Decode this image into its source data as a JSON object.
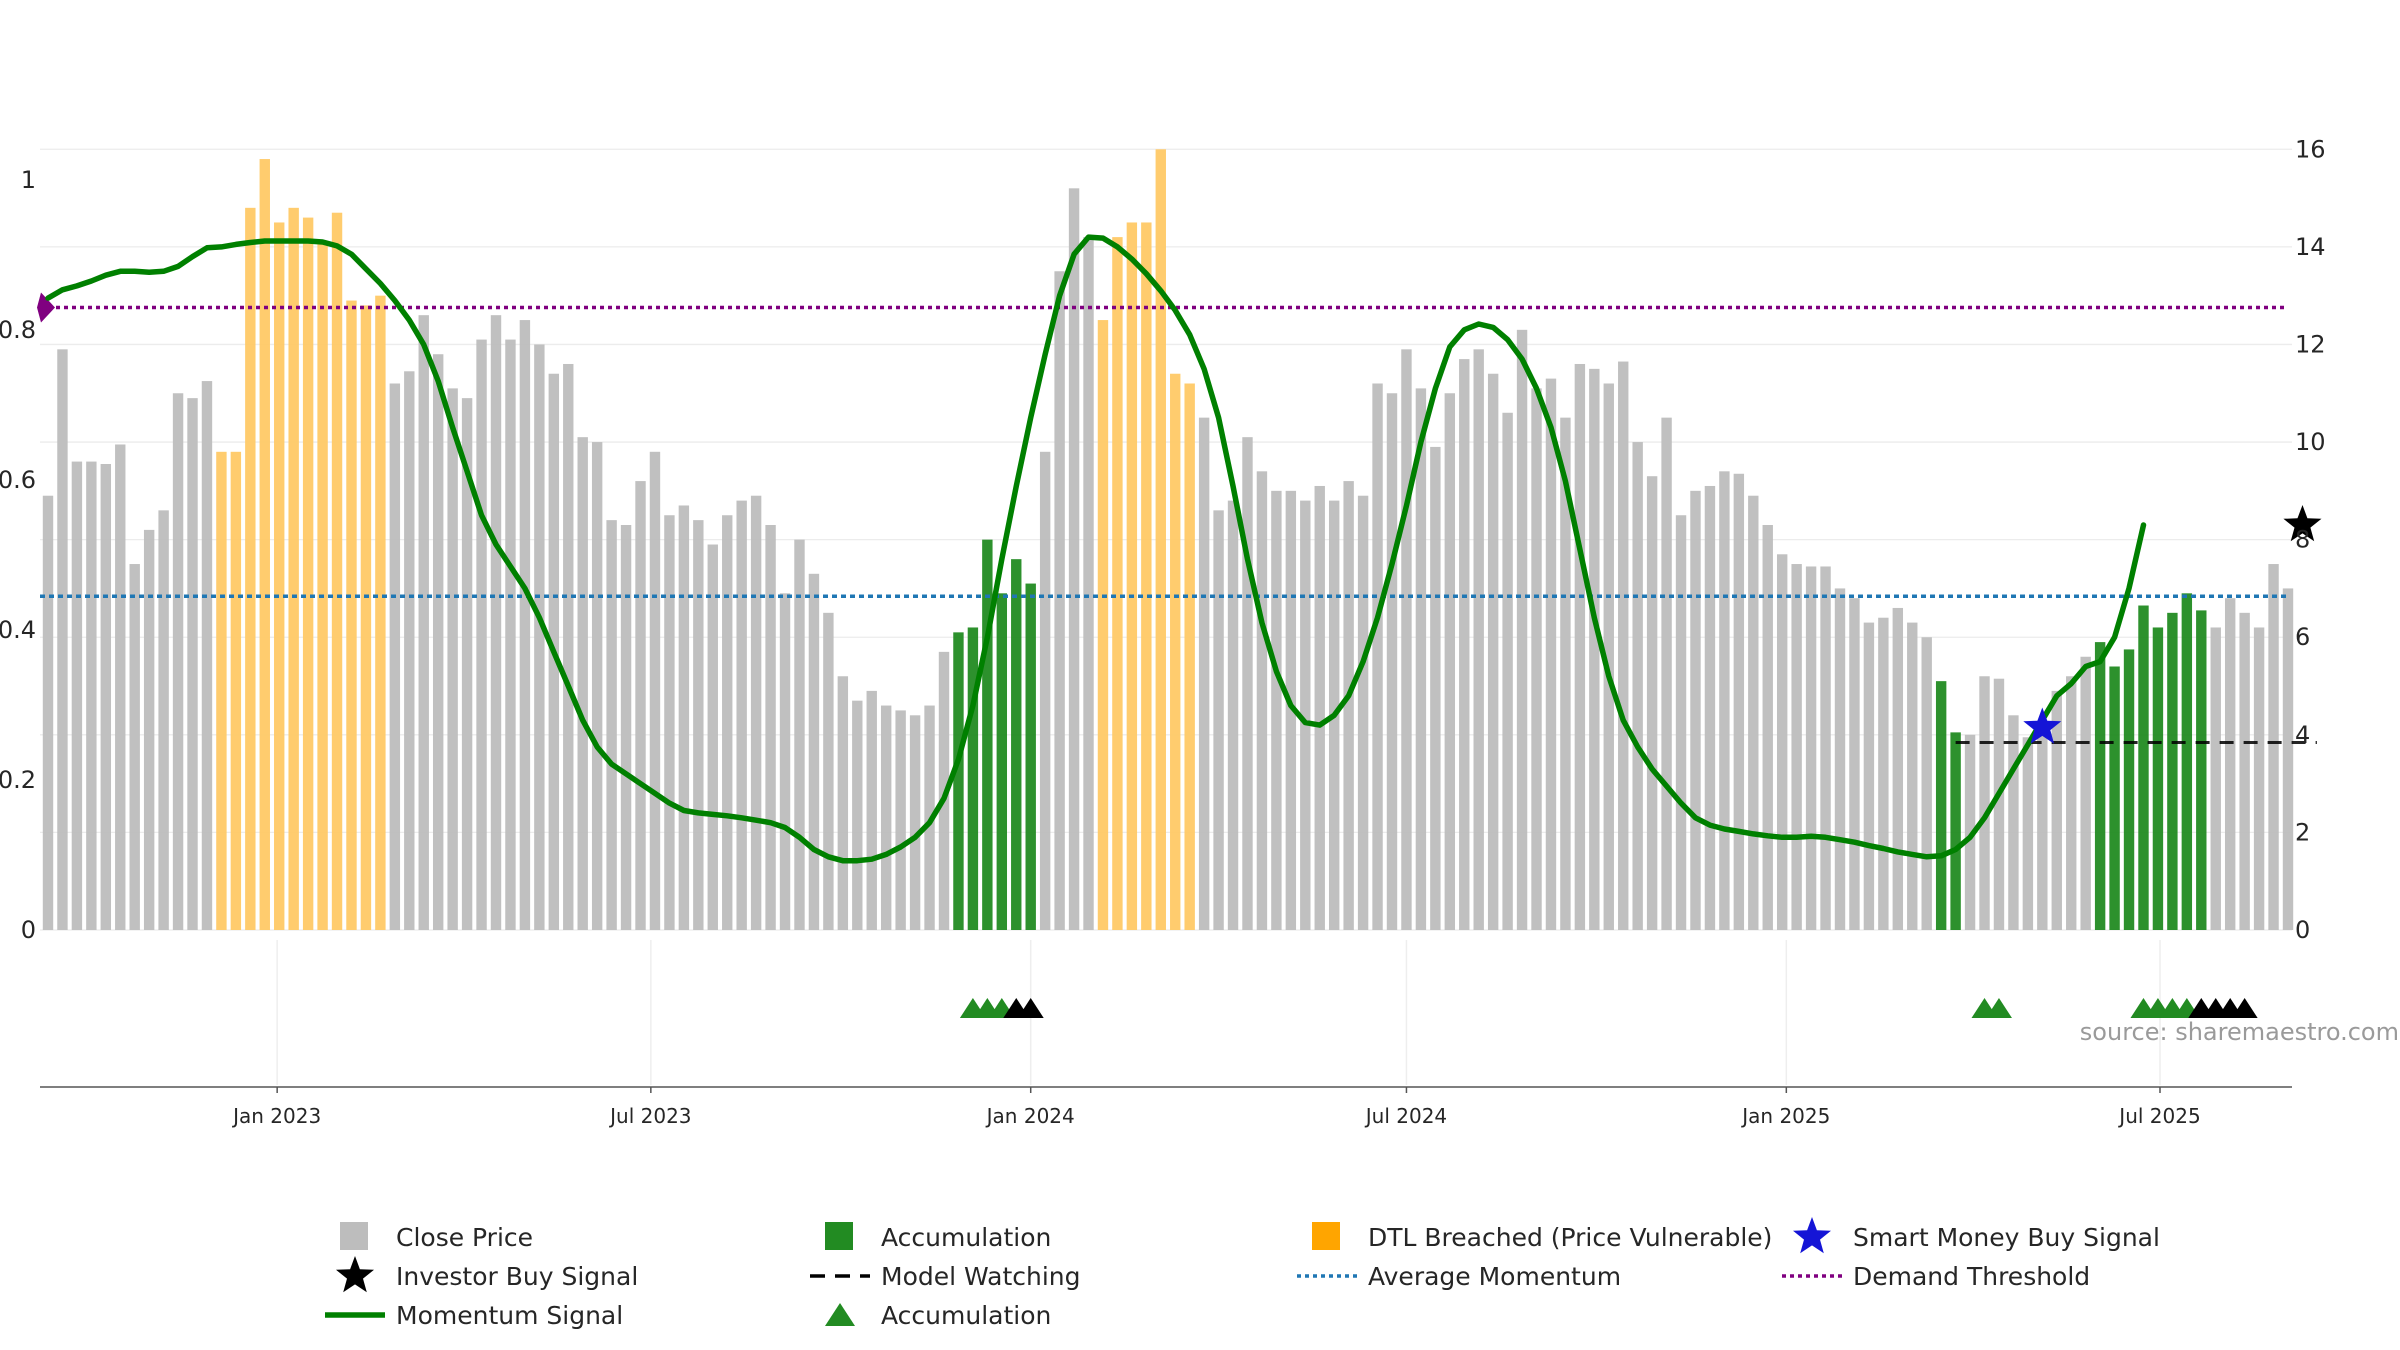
{
  "chart_data": {
    "type": "bar",
    "title": "",
    "xlabel": "",
    "ylabel": "",
    "source_text": "source: sharemaestro.com",
    "x_start": "2022-09-12",
    "x_step_days": 7,
    "x_ticks": [
      "Jan 2023",
      "Jul 2023",
      "Jan 2024",
      "Jul 2024",
      "Jan 2025",
      "Jul 2025"
    ],
    "left_axis": {
      "range": [
        0,
        1.08
      ],
      "ticks": [
        "0",
        "0.2",
        "0.4",
        "0.6",
        "0.8",
        "1"
      ]
    },
    "right_axis": {
      "range": [
        0,
        16.6
      ],
      "ticks": [
        "0",
        "2",
        "4",
        "6",
        "8",
        "10",
        "12",
        "14",
        "16"
      ]
    },
    "demand_threshold": 0.83,
    "average_momentum": 0.445,
    "model_watching_level": 0.25,
    "legend_items": [
      "Close Price",
      "Accumulation",
      "DTL Breached (Price Vulnerable)",
      "Smart Money Buy Signal",
      "Investor Buy Signal",
      "Model Watching",
      "Average Momentum",
      "Demand Threshold",
      "Momentum Signal",
      "Accumulation"
    ],
    "colors": {
      "close_price": "#bdbdbd",
      "accumulation": "#228b22",
      "dtl_breached": "#ffc966",
      "momentum_signal": "#008000",
      "average_momentum": "#1f77b4",
      "demand_threshold": "#800080",
      "smart_money": "#1515d6",
      "investor_buy": "#000000",
      "model_watching": "#000000"
    },
    "close_price": [
      8.9,
      11.9,
      9.6,
      9.6,
      9.55,
      9.95,
      7.5,
      8.2,
      8.6,
      11,
      10.9,
      11.25,
      9.8,
      9.8,
      14.8,
      15.8,
      14.5,
      14.8,
      14.6,
      14.1,
      14.7,
      12.9,
      12.8,
      13,
      11.2,
      11.45,
      12.6,
      11.8,
      11.1,
      10.9,
      12.1,
      12.6,
      12.1,
      12.5,
      12,
      11.4,
      11.6,
      10.1,
      10,
      8.4,
      8.3,
      9.2,
      9.8,
      8.5,
      8.7,
      8.4,
      7.9,
      8.5,
      8.8,
      8.9,
      8.3,
      6.9,
      8,
      7.3,
      6.5,
      5.2,
      4.7,
      4.9,
      4.6,
      4.5,
      4.4,
      4.6,
      5.7,
      6.1,
      6.2,
      8,
      6.9,
      7.6,
      7.1,
      9.8,
      13.5,
      15.2,
      14.2,
      12.5,
      14.2,
      14.5,
      14.5,
      16,
      11.4,
      11.2,
      10.5,
      8.6,
      8.8,
      10.1,
      9.4,
      9,
      9,
      8.8,
      9.1,
      8.8,
      9.2,
      8.9,
      11.2,
      11,
      11.9,
      11.1,
      9.9,
      11,
      11.7,
      11.9,
      11.4,
      10.6,
      12.3,
      11.1,
      11.3,
      10.5,
      11.6,
      11.5,
      11.2,
      11.65,
      10,
      9.3,
      10.5,
      8.5,
      9,
      9.1,
      9.4,
      9.35,
      8.9,
      8.3,
      7.7,
      7.5,
      7.45,
      7.45,
      7,
      6.8,
      6.3,
      6.4,
      6.6,
      6.3,
      6,
      5.1,
      4.05,
      4,
      5.2,
      5.15,
      4.4,
      3.95,
      4.05,
      4.9,
      5.2,
      5.6,
      5.9,
      5.4,
      5.75,
      6.65,
      6.2,
      6.5,
      6.9,
      6.55,
      6.2,
      6.8,
      6.5,
      6.2,
      7.5,
      7
    ],
    "categories_by_bar": {
      "dtl_breached": [
        [
          12,
          23
        ],
        [
          73,
          79
        ]
      ],
      "accumulation": [
        [
          63,
          68
        ],
        [
          131,
          132
        ],
        [
          142,
          149
        ]
      ]
    },
    "momentum_signal": [
      [
        0,
        12.95
      ],
      [
        1,
        13.12
      ],
      [
        2,
        13.2
      ],
      [
        3,
        13.3
      ],
      [
        4,
        13.42
      ],
      [
        5,
        13.5
      ],
      [
        6,
        13.5
      ],
      [
        7,
        13.48
      ],
      [
        8,
        13.5
      ],
      [
        9,
        13.6
      ],
      [
        10,
        13.8
      ],
      [
        11,
        13.98
      ],
      [
        12,
        14.0
      ],
      [
        13,
        14.05
      ],
      [
        14,
        14.09
      ],
      [
        15,
        14.12
      ],
      [
        16,
        14.12
      ],
      [
        17,
        14.12
      ],
      [
        18,
        14.12
      ],
      [
        19,
        14.1
      ],
      [
        20,
        14.02
      ],
      [
        21,
        13.85
      ],
      [
        22,
        13.55
      ],
      [
        23,
        13.25
      ],
      [
        24,
        12.9
      ],
      [
        25,
        12.5
      ],
      [
        26,
        12.0
      ],
      [
        27,
        11.25
      ],
      [
        28,
        10.3
      ],
      [
        29,
        9.4
      ],
      [
        30,
        8.5
      ],
      [
        31,
        7.9
      ],
      [
        32,
        7.45
      ],
      [
        33,
        7.0
      ],
      [
        34,
        6.4
      ],
      [
        35,
        5.7
      ],
      [
        36,
        5.0
      ],
      [
        37,
        4.3
      ],
      [
        38,
        3.75
      ],
      [
        39,
        3.4
      ],
      [
        40,
        3.2
      ],
      [
        41,
        3.0
      ],
      [
        42,
        2.8
      ],
      [
        43,
        2.6
      ],
      [
        44,
        2.45
      ],
      [
        45,
        2.4
      ],
      [
        46,
        2.37
      ],
      [
        47,
        2.34
      ],
      [
        48,
        2.3
      ],
      [
        49,
        2.25
      ],
      [
        50,
        2.2
      ],
      [
        51,
        2.1
      ],
      [
        52,
        1.9
      ],
      [
        53,
        1.65
      ],
      [
        54,
        1.5
      ],
      [
        55,
        1.42
      ],
      [
        56,
        1.42
      ],
      [
        57,
        1.45
      ],
      [
        58,
        1.55
      ],
      [
        59,
        1.7
      ],
      [
        60,
        1.9
      ],
      [
        61,
        2.2
      ],
      [
        62,
        2.7
      ],
      [
        63,
        3.5
      ],
      [
        64,
        4.6
      ],
      [
        65,
        6.0
      ],
      [
        66,
        7.6
      ],
      [
        67,
        9.1
      ],
      [
        68,
        10.5
      ],
      [
        69,
        11.8
      ],
      [
        70,
        13.0
      ],
      [
        71,
        13.85
      ],
      [
        72,
        14.2
      ],
      [
        73,
        14.18
      ],
      [
        74,
        14.0
      ],
      [
        75,
        13.75
      ],
      [
        76,
        13.45
      ],
      [
        77,
        13.1
      ],
      [
        78,
        12.7
      ],
      [
        79,
        12.2
      ],
      [
        80,
        11.5
      ],
      [
        81,
        10.5
      ],
      [
        82,
        9.1
      ],
      [
        83,
        7.6
      ],
      [
        84,
        6.3
      ],
      [
        85,
        5.3
      ],
      [
        86,
        4.6
      ],
      [
        87,
        4.25
      ],
      [
        88,
        4.2
      ],
      [
        89,
        4.4
      ],
      [
        90,
        4.8
      ],
      [
        91,
        5.5
      ],
      [
        92,
        6.4
      ],
      [
        93,
        7.5
      ],
      [
        94,
        8.7
      ],
      [
        95,
        10.0
      ],
      [
        96,
        11.1
      ],
      [
        97,
        11.95
      ],
      [
        98,
        12.3
      ],
      [
        99,
        12.42
      ],
      [
        100,
        12.35
      ],
      [
        101,
        12.1
      ],
      [
        102,
        11.7
      ],
      [
        103,
        11.1
      ],
      [
        104,
        10.3
      ],
      [
        105,
        9.2
      ],
      [
        106,
        7.8
      ],
      [
        107,
        6.4
      ],
      [
        108,
        5.2
      ],
      [
        109,
        4.3
      ],
      [
        110,
        3.75
      ],
      [
        111,
        3.3
      ],
      [
        112,
        2.95
      ],
      [
        113,
        2.6
      ],
      [
        114,
        2.3
      ],
      [
        115,
        2.15
      ],
      [
        116,
        2.07
      ],
      [
        117,
        2.02
      ],
      [
        118,
        1.97
      ],
      [
        119,
        1.93
      ],
      [
        120,
        1.9
      ],
      [
        121,
        1.9
      ],
      [
        122,
        1.92
      ],
      [
        123,
        1.9
      ],
      [
        124,
        1.85
      ],
      [
        125,
        1.8
      ],
      [
        126,
        1.73
      ],
      [
        127,
        1.67
      ],
      [
        128,
        1.6
      ],
      [
        129,
        1.55
      ],
      [
        130,
        1.5
      ],
      [
        131,
        1.52
      ],
      [
        132,
        1.65
      ],
      [
        133,
        1.9
      ],
      [
        134,
        2.3
      ],
      [
        135,
        2.8
      ],
      [
        136,
        3.3
      ],
      [
        137,
        3.8
      ],
      [
        138,
        4.3
      ],
      [
        139,
        4.8
      ],
      [
        140,
        5.05
      ],
      [
        141,
        5.4
      ],
      [
        142,
        5.5
      ],
      [
        143,
        6.0
      ],
      [
        144,
        7.0
      ],
      [
        145,
        8.3
      ]
    ],
    "accumulation_markers_green": [
      64,
      65,
      66,
      134,
      135,
      145,
      146,
      147,
      148
    ],
    "accumulation_markers_black": [
      67,
      68,
      149,
      150,
      151,
      152
    ],
    "smart_money_signal": {
      "bar": 138,
      "value": 4.15
    },
    "investor_buy_signal": {
      "bar": 156,
      "value": 8.3
    },
    "model_watching_range": [
      132,
      157
    ]
  }
}
